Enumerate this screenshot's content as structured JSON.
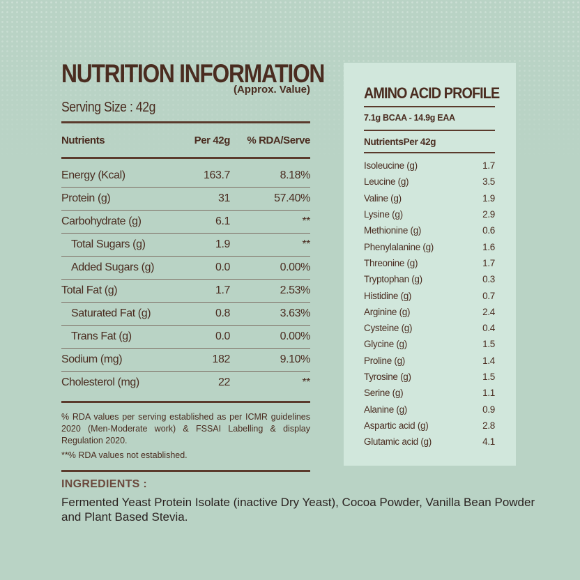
{
  "nutrition": {
    "title": "NUTRITION INFORMATION",
    "subtitle": "(Approx. Value)",
    "serving": "Serving Size : 42g",
    "headers": [
      "Nutrients",
      "Per 42g",
      "% RDA/Serve"
    ],
    "rows": [
      {
        "name": "Energy (Kcal)",
        "per": "163.7",
        "rda": "8.18%"
      },
      {
        "name": "Protein (g)",
        "per": "31",
        "rda": "57.40%"
      },
      {
        "name": "Carbohydrate (g)",
        "per": "6.1",
        "rda": "**"
      },
      {
        "name": "Total Sugars (g)",
        "per": "1.9",
        "rda": "**"
      },
      {
        "name": "Added Sugars (g)",
        "per": "0.0",
        "rda": "0.00%"
      },
      {
        "name": "Total Fat (g)",
        "per": "1.7",
        "rda": "2.53%"
      },
      {
        "name": "Saturated Fat (g)",
        "per": "0.8",
        "rda": "3.63%"
      },
      {
        "name": "Trans Fat (g)",
        "per": "0.0",
        "rda": "0.00%"
      },
      {
        "name": "Sodium (mg)",
        "per": "182",
        "rda": "9.10%"
      },
      {
        "name": "Cholesterol (mg)",
        "per": "22",
        "rda": "**"
      }
    ],
    "note1": "% RDA values per serving established as per ICMR guidelines 2020 (Men-Moderate work) & FSSAI Labelling & display Regulation 2020.",
    "note2": "**% RDA values not established."
  },
  "amino": {
    "title": "AMINO ACID PROFILE",
    "bcaa": "7.1g BCAA  -  14.9g EAA",
    "headers": [
      "Nutrients",
      "Per 42g"
    ],
    "rows": [
      {
        "name": "Isoleucine (g)",
        "val": "1.7"
      },
      {
        "name": "Leucine (g)",
        "val": "3.5"
      },
      {
        "name": "Valine (g)",
        "val": "1.9"
      },
      {
        "name": "Lysine (g)",
        "val": "2.9"
      },
      {
        "name": "Methionine (g)",
        "val": "0.6"
      },
      {
        "name": "Phenylalanine (g)",
        "val": "1.6"
      },
      {
        "name": "Threonine (g)",
        "val": "1.7"
      },
      {
        "name": "Tryptophan (g)",
        "val": "0.3"
      },
      {
        "name": "Histidine (g)",
        "val": "0.7"
      },
      {
        "name": "Arginine (g)",
        "val": "2.4"
      },
      {
        "name": "Cysteine (g)",
        "val": "0.4"
      },
      {
        "name": "Glycine (g)",
        "val": "1.5"
      },
      {
        "name": "Proline (g)",
        "val": "1.4"
      },
      {
        "name": "Tyrosine (g)",
        "val": "1.5"
      },
      {
        "name": "Serine (g)",
        "val": "1.1"
      },
      {
        "name": "Alanine (g)",
        "val": "0.9"
      },
      {
        "name": "Aspartic acid (g)",
        "val": "2.8"
      },
      {
        "name": "Glutamic acid (g)",
        "val": "4.1"
      }
    ]
  },
  "ingredients": {
    "title": "INGREDIENTS :",
    "text": "Fermented Yeast Protein Isolate (inactive Dry Yeast), Cocoa Powder, Vanilla Bean Powder and Plant Based Stevia."
  },
  "colors": {
    "background": "#b9d3c5",
    "panel": "#d1e7dc",
    "text": "#4a2c20"
  }
}
